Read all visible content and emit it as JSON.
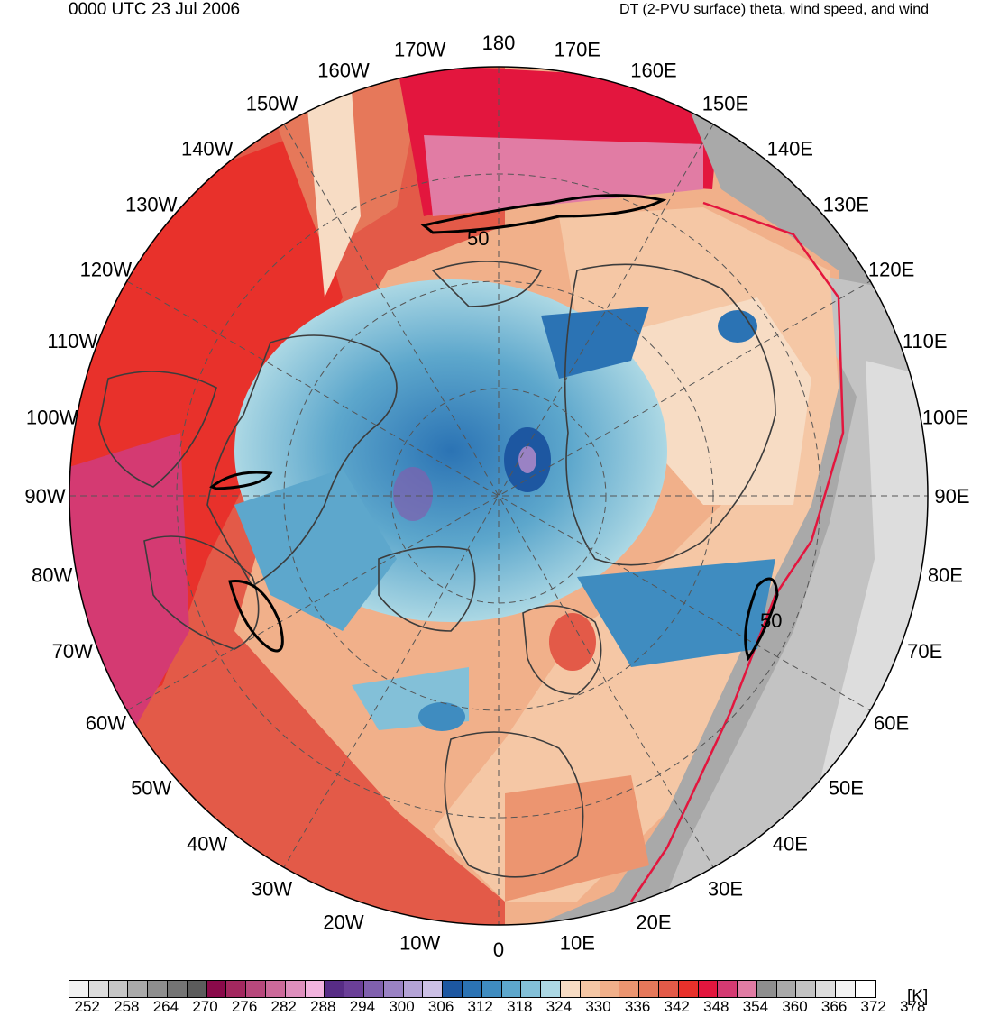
{
  "header": {
    "time_label": "0000 UTC 23 Jul 2006",
    "field_label": "DT (2-PVU surface) theta, wind speed, and wind"
  },
  "map": {
    "projection": "north-polar-stereographic",
    "longitude_labels": [
      "0",
      "10E",
      "20E",
      "30E",
      "40E",
      "50E",
      "60E",
      "70E",
      "80E",
      "90E",
      "100E",
      "110E",
      "120E",
      "130E",
      "140E",
      "150E",
      "160E",
      "170E",
      "180",
      "170W",
      "160W",
      "150W",
      "140W",
      "130W",
      "120W",
      "110W",
      "100W",
      "90W",
      "80W",
      "70W",
      "60W",
      "50W",
      "40W",
      "30W",
      "20W",
      "10W"
    ],
    "contour_labels": [
      "50",
      "50"
    ],
    "colors": {
      "coast": "#3c3c3c",
      "grid": "#555555",
      "contour": "#000000"
    }
  },
  "colorbar": {
    "unit": "[K]",
    "tick_labels": [
      "252",
      "258",
      "264",
      "270",
      "276",
      "282",
      "288",
      "294",
      "300",
      "306",
      "312",
      "318",
      "324",
      "330",
      "336",
      "342",
      "348",
      "354",
      "360",
      "366",
      "372",
      "378"
    ],
    "colors": [
      "#f2f2f2",
      "#dcdcdc",
      "#c6c6c6",
      "#aaaaaa",
      "#8e8e8e",
      "#747474",
      "#5c5c5c",
      "#8a0a4a",
      "#a3285f",
      "#b8487c",
      "#cc6a9a",
      "#de8fbd",
      "#f2b3de",
      "#572c85",
      "#6b3f98",
      "#8060ae",
      "#9a82c4",
      "#b4a3d6",
      "#ccc0e6",
      "#1d57a1",
      "#2b73b4",
      "#3f8cc0",
      "#5da7cc",
      "#83c0d8",
      "#acd8e4",
      "#f7dcc4",
      "#f5c7a5",
      "#f1b08a",
      "#ec9570",
      "#e6785a",
      "#e35a48",
      "#e8312b",
      "#e3163e",
      "#d43a72",
      "#e17ca4",
      "#8e8e8e",
      "#a9a9a9",
      "#c3c3c3",
      "#dddddd",
      "#f3f3f3",
      "#ffffff"
    ]
  }
}
